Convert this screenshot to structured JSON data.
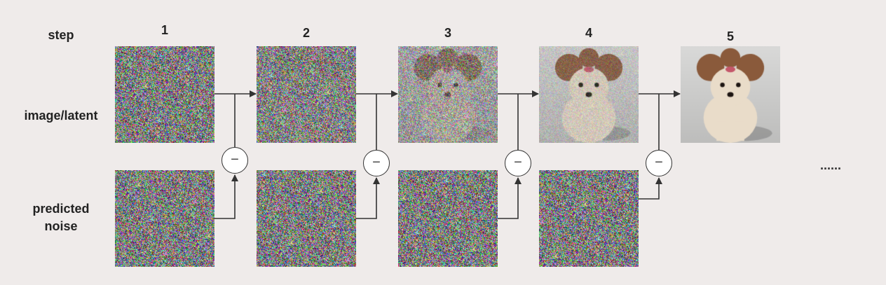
{
  "row_labels": {
    "step": "step",
    "image_latent": "image/latent",
    "predicted_noise_line1": "predicted",
    "predicted_noise_line2": "noise"
  },
  "steps": [
    {
      "number": "1",
      "image_noise_level": 1.0
    },
    {
      "number": "2",
      "image_noise_level": 0.93
    },
    {
      "number": "3",
      "image_noise_level": 0.62
    },
    {
      "number": "4",
      "image_noise_level": 0.22
    },
    {
      "number": "5",
      "image_noise_level": 0.0
    }
  ],
  "operator_symbol": "−",
  "continuation": "......",
  "colors": {
    "background": "#efebea",
    "line": "#333333",
    "dog_fur": "#e9dcc9",
    "dog_ears": "#8a5a3b",
    "bg_clean": "#cfd0cf"
  }
}
